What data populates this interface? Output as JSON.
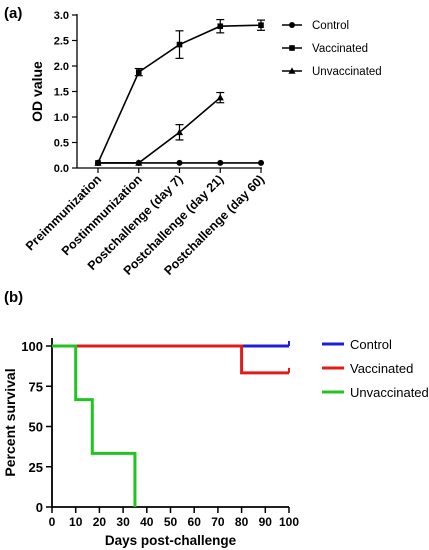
{
  "panels": {
    "a": "(a)",
    "b": "(b)"
  },
  "chart_data": [
    {
      "type": "line",
      "panel": "(a)",
      "categories": [
        "Preimmunization",
        "Postimmunization",
        "Postchallenge (day 7)",
        "Postchallenge (day 21)",
        "Postchallenge (day 60)"
      ],
      "ylabel": "OD value",
      "xlabel": "",
      "ylim": [
        0,
        3.0
      ],
      "yticks": [
        "0.0",
        "0.5",
        "1.0",
        "1.5",
        "2.0",
        "2.5",
        "3.0"
      ],
      "legend_position": "right",
      "series": [
        {
          "name": "Control",
          "marker": "circle",
          "values": [
            0.1,
            0.1,
            0.1,
            0.1,
            0.1
          ],
          "errors": [
            0,
            0,
            0,
            0,
            0
          ]
        },
        {
          "name": "Vaccinated",
          "marker": "square",
          "values": [
            0.1,
            1.88,
            2.42,
            2.78,
            2.8
          ],
          "errors": [
            0,
            0.07,
            0.27,
            0.13,
            0.1
          ]
        },
        {
          "name": "Unvaccinated",
          "marker": "triangle",
          "values": [
            0.1,
            0.1,
            0.7,
            1.38,
            null
          ],
          "errors": [
            0,
            0,
            0.15,
            0.1,
            0
          ]
        }
      ]
    },
    {
      "type": "step",
      "panel": "(b)",
      "xlabel": "Days post-challenge",
      "ylabel": "Percent survival",
      "xlim": [
        0,
        100
      ],
      "ylim": [
        0,
        100
      ],
      "xticks": [
        "0",
        "10",
        "20",
        "30",
        "40",
        "50",
        "60",
        "70",
        "80",
        "90",
        "100"
      ],
      "yticks": [
        "0",
        "25",
        "50",
        "75",
        "100"
      ],
      "legend_position": "right",
      "series": [
        {
          "name": "Control",
          "color": "#1f1fd6",
          "x": [
            0,
            100
          ],
          "y": [
            100,
            100
          ]
        },
        {
          "name": "Vaccinated",
          "color": "#e11b1b",
          "x": [
            0,
            80,
            100
          ],
          "y": [
            100,
            83.3,
            83.3
          ]
        },
        {
          "name": "Unvaccinated",
          "color": "#22c322",
          "x": [
            0,
            10,
            17,
            35
          ],
          "y": [
            100,
            66.7,
            33.3,
            0
          ]
        }
      ]
    }
  ]
}
